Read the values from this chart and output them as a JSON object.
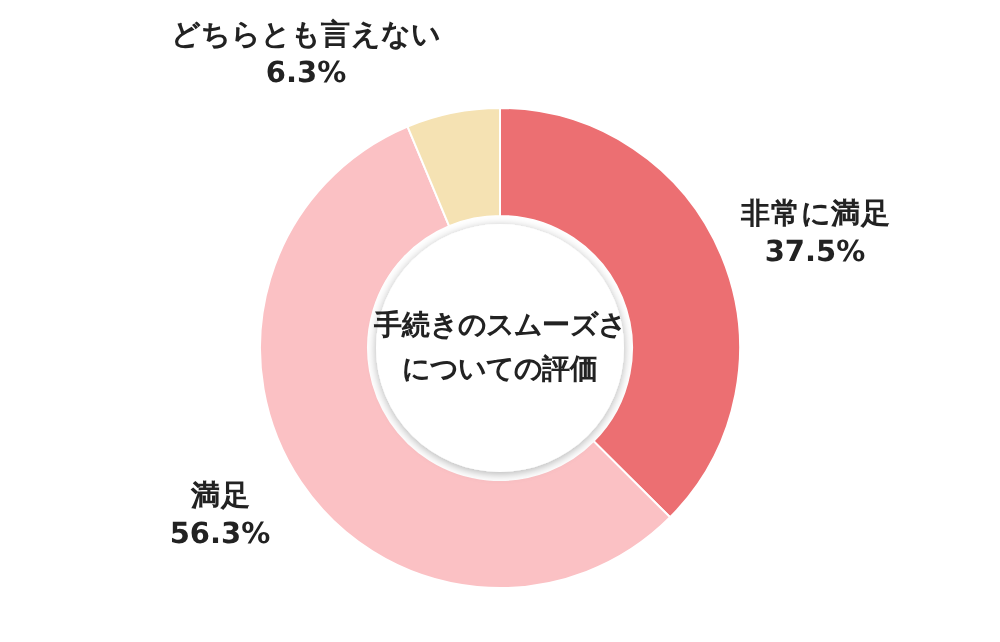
{
  "chart_data": {
    "type": "donut",
    "title": "手続きのスムーズさについての評価",
    "categories": [
      "非常に満足",
      "満足",
      "どちらとも言えない"
    ],
    "values": [
      37.5,
      56.3,
      6.3
    ],
    "colors": [
      "#ec6f72",
      "#fbc1c4",
      "#f5e2b3"
    ],
    "value_labels": [
      "37.5%",
      "56.3%",
      "6.3%"
    ]
  }
}
